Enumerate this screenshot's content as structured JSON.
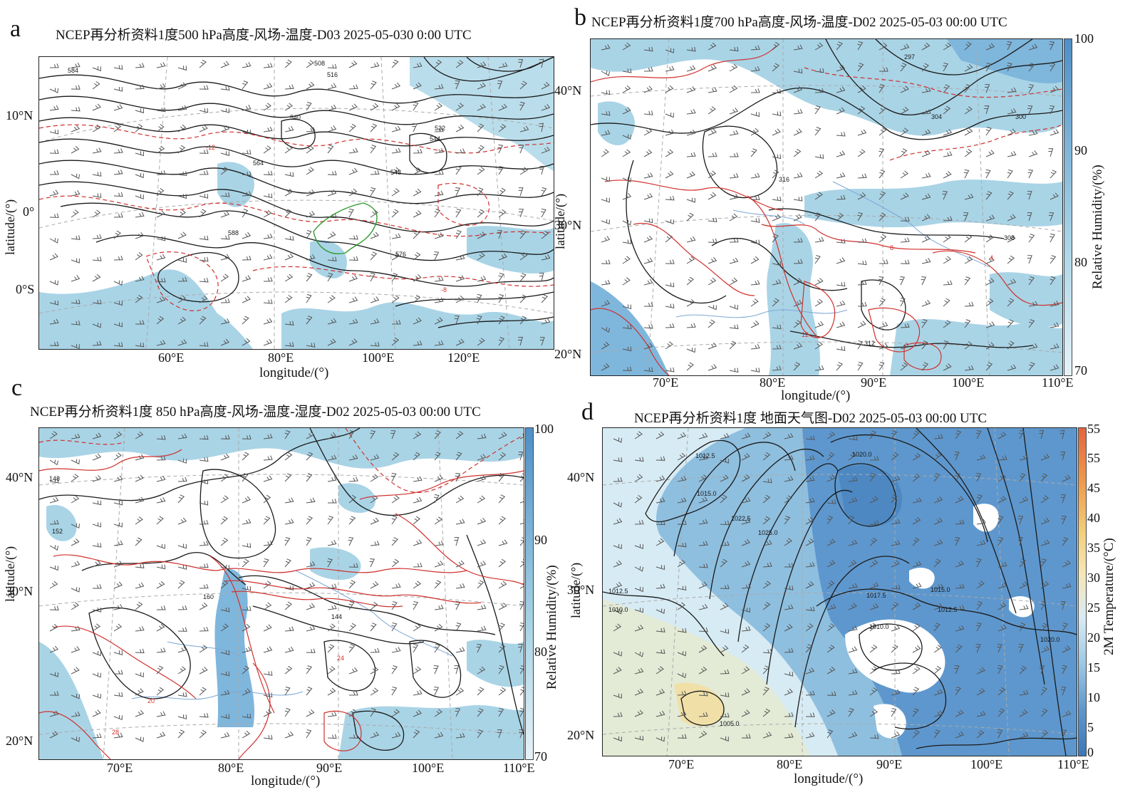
{
  "panels": {
    "a": {
      "letter": "a",
      "title": "NCEP再分析资料1度500 hPa高度-风场-温度-D03 2025-05-030 0:00 UTC",
      "ylabel": "latitude/(°)",
      "xlabel": "longitude/(°)",
      "yticks": [
        "10°N",
        "0°",
        "0°S"
      ],
      "xticks": [
        "60°E",
        "80°E",
        "100°E",
        "120°E"
      ],
      "contour_labels": [
        "508",
        "516",
        "540",
        "544",
        "548",
        "564",
        "576",
        "584",
        "588",
        "532",
        "-8",
        "-12"
      ]
    },
    "b": {
      "letter": "b",
      "title": "NCEP再分析资料1度700 hPa高度-风场-温度-D02 2025-05-03 00:00 UTC",
      "ylabel": "latitude/(°)",
      "xlabel": "longitude/(°)",
      "yticks": [
        "40°N",
        "30°N",
        "20°N"
      ],
      "xticks": [
        "70°E",
        "80°E",
        "90°E",
        "100°E",
        "110°E"
      ],
      "colorbar_label": "Relative Humidity/(%)",
      "colorbar_ticks": [
        "100",
        "90",
        "80",
        "70"
      ],
      "contour_labels": [
        "304",
        "308",
        "312",
        "316",
        "297",
        "300",
        "12",
        "8",
        "4"
      ]
    },
    "c": {
      "letter": "c",
      "title": "NCEP再分析资料1度  850 hPa高度-风场-温度-湿度-D02 2025-05-03 00:00 UTC",
      "ylabel": "latitude/(°)",
      "xlabel": "longitude/(°)",
      "yticks": [
        "40°N",
        "30°N",
        "20°N"
      ],
      "xticks": [
        "70°E",
        "80°E",
        "90°E",
        "100°E",
        "110°E"
      ],
      "colorbar_label": "Relative Humidity/(%)",
      "colorbar_ticks": [
        "100",
        "90",
        "80",
        "70"
      ],
      "contour_labels": [
        "148",
        "152",
        "144",
        "160",
        "20",
        "24",
        "28"
      ]
    },
    "d": {
      "letter": "d",
      "title": "NCEP再分析资料1度  地面天气图-D02 2025-05-03 00:00 UTC",
      "ylabel": "latitude/(°)",
      "xlabel": "longitude/(°)",
      "yticks": [
        "40°N",
        "30°N",
        "20°N"
      ],
      "xticks": [
        "70°E",
        "80°E",
        "90°E",
        "100°E",
        "110°E"
      ],
      "colorbar_label": "2M Temperature/(°C)",
      "colorbar_ticks": [
        "55",
        "55",
        "45",
        "40",
        "35",
        "30",
        "25",
        "20",
        "15",
        "10",
        "5",
        "0"
      ],
      "contour_labels": [
        "1012.5",
        "1015.0",
        "1020.0",
        "1022.5",
        "1025.0",
        "1017.5",
        "1010.0",
        "1005.0"
      ]
    }
  },
  "colors": {
    "humidity_fill": "#a9d4e6",
    "humidity_dark": "#5b95c9",
    "contour_black": "#1a1a1a",
    "temperature_red": "#d0312d",
    "boundary_green": "#2f9a2f",
    "river_blue": "#7fa8d6",
    "grid_gray": "#999999"
  }
}
